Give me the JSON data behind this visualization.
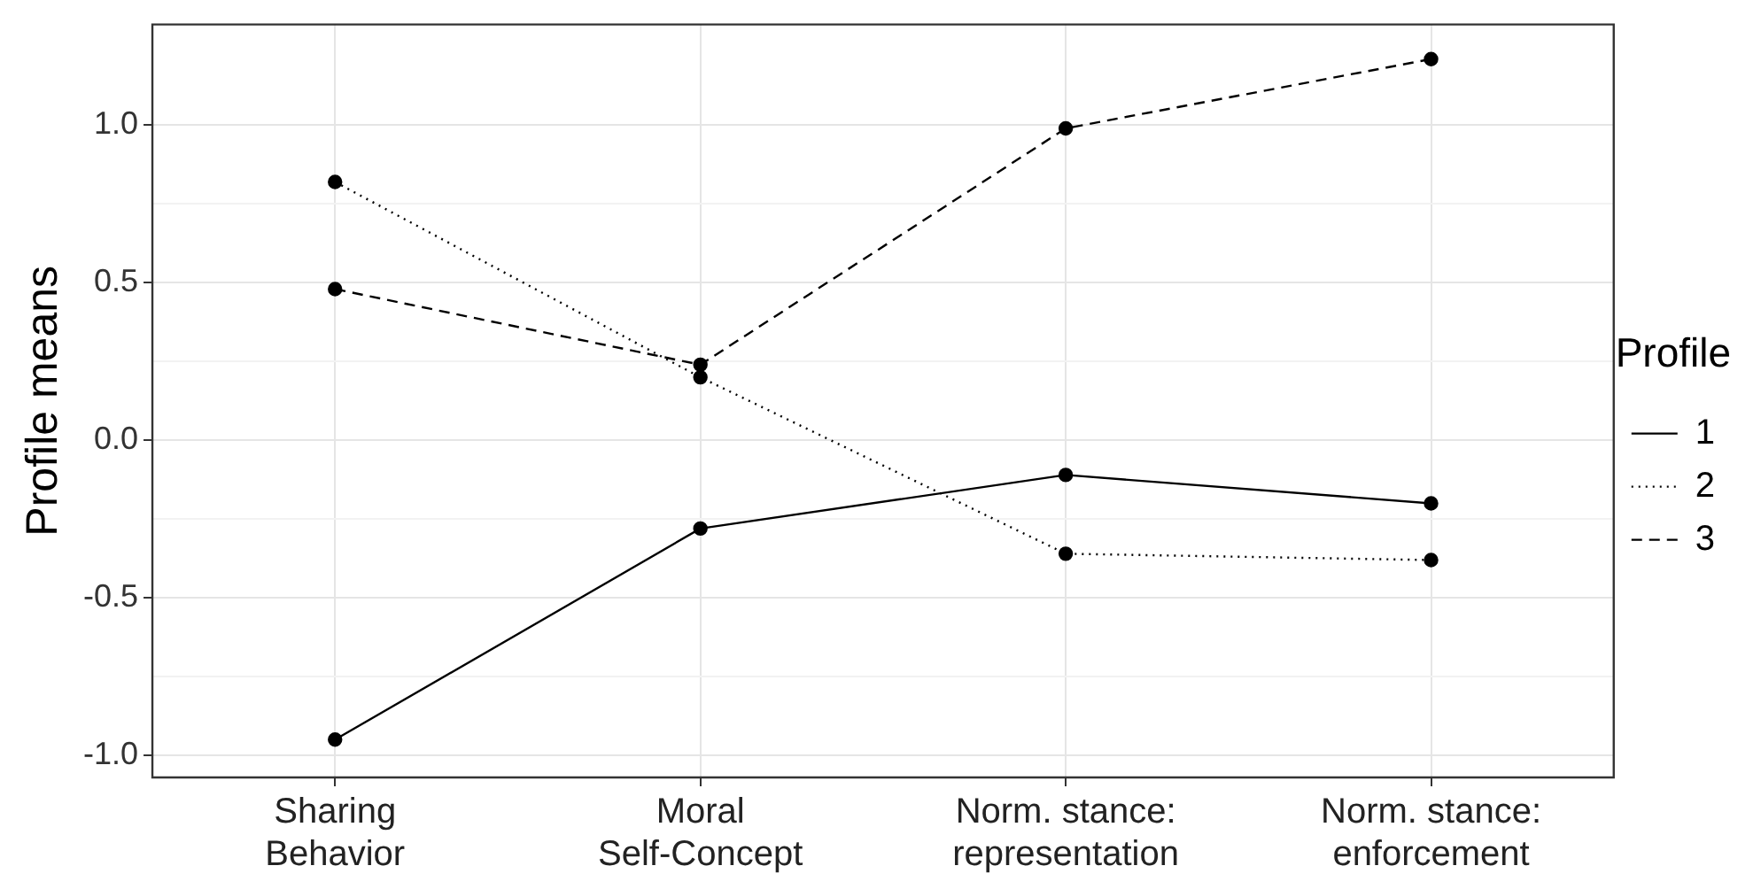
{
  "chart_data": {
    "type": "line",
    "ylabel": "Profile means",
    "legend_title": "Profile",
    "categories": [
      "Sharing Behavior",
      "Moral Self-Concept",
      "Norm. stance: representation",
      "Norm. stance: enforcement"
    ],
    "series": [
      {
        "name": "1",
        "color": "#000000",
        "line_style": "solid",
        "values": [
          -0.95,
          -0.28,
          -0.11,
          -0.2
        ]
      },
      {
        "name": "2",
        "color": "#000000",
        "line_style": "dotted",
        "values": [
          0.82,
          0.2,
          -0.36,
          -0.38
        ]
      },
      {
        "name": "3",
        "color": "#000000",
        "line_style": "dashed",
        "values": [
          0.48,
          0.24,
          0.99,
          1.21
        ]
      }
    ],
    "ylim": [
      -1.07,
      1.32
    ],
    "yticks": [
      {
        "value": -1,
        "label": "-1.0"
      },
      {
        "value": -0.75,
        "label": null
      },
      {
        "value": -0.5,
        "label": "-0.5"
      },
      {
        "value": -0.25,
        "label": null
      },
      {
        "value": 0,
        "label": "0.0"
      },
      {
        "value": 0.25,
        "label": null
      },
      {
        "value": 0.5,
        "label": "0.5"
      },
      {
        "value": 0.75,
        "label": null
      },
      {
        "value": 1,
        "label": "1.0"
      }
    ],
    "grid": true,
    "legend": "right",
    "marker": "circle"
  }
}
